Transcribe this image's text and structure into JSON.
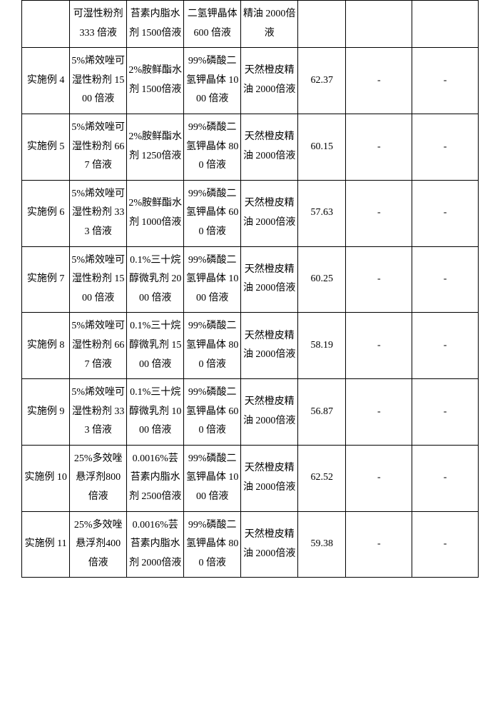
{
  "table": {
    "background_color": "#ffffff",
    "border_color": "#000000",
    "text_color": "#000000",
    "font_family": "SimSun",
    "font_size_pt": 10,
    "line_height": 1.9,
    "columns": [
      {
        "id": "label",
        "width_pct": 10.5,
        "align": "center"
      },
      {
        "id": "col1",
        "width_pct": 12.5,
        "align": "center"
      },
      {
        "id": "col2",
        "width_pct": 12.5,
        "align": "center"
      },
      {
        "id": "col3",
        "width_pct": 12.5,
        "align": "center"
      },
      {
        "id": "col4",
        "width_pct": 12.5,
        "align": "center"
      },
      {
        "id": "val",
        "width_pct": 10.5,
        "align": "center"
      },
      {
        "id": "extra1",
        "width_pct": 14.5,
        "align": "center"
      },
      {
        "id": "extra2",
        "width_pct": 14.5,
        "align": "center"
      }
    ],
    "rows": [
      {
        "label": "",
        "col1": "可湿性粉剂 333 倍液",
        "col2": "苔素内脂水剂 1500倍液",
        "col3": "二氢钾晶体 600 倍液",
        "col4": "精油 2000倍液",
        "val": "",
        "extra1": "",
        "extra2": ""
      },
      {
        "label": "实施例 4",
        "col1": "5%烯效唑可湿性粉剂 1500 倍液",
        "col2": "2%胺鲜酯水剂 1500倍液",
        "col3": "99%磷酸二氢钾晶体 1000 倍液",
        "col4": "天然橙皮精油 2000倍液",
        "val": "62.37",
        "extra1": "-",
        "extra2": "-"
      },
      {
        "label": "实施例 5",
        "col1": "5%烯效唑可湿性粉剂 667 倍液",
        "col2": "2%胺鲜酯水剂 1250倍液",
        "col3": "99%磷酸二氢钾晶体 800 倍液",
        "col4": "天然橙皮精油 2000倍液",
        "val": "60.15",
        "extra1": "-",
        "extra2": "-"
      },
      {
        "label": "实施例 6",
        "col1": "5%烯效唑可湿性粉剂 333 倍液",
        "col2": "2%胺鲜酯水剂 1000倍液",
        "col3": "99%磷酸二氢钾晶体 600 倍液",
        "col4": "天然橙皮精油 2000倍液",
        "val": "57.63",
        "extra1": "-",
        "extra2": "-"
      },
      {
        "label": "实施例 7",
        "col1": "5%烯效唑可湿性粉剂 1500 倍液",
        "col2": "0.1%三十烷醇微乳剂 2000 倍液",
        "col3": "99%磷酸二氢钾晶体 1000 倍液",
        "col4": "天然橙皮精油 2000倍液",
        "val": "60.25",
        "extra1": "-",
        "extra2": "-"
      },
      {
        "label": "实施例 8",
        "col1": "5%烯效唑可湿性粉剂 667 倍液",
        "col2": "0.1%三十烷醇微乳剂 1500 倍液",
        "col3": "99%磷酸二氢钾晶体 800 倍液",
        "col4": "天然橙皮精油 2000倍液",
        "val": "58.19",
        "extra1": "-",
        "extra2": "-"
      },
      {
        "label": "实施例 9",
        "col1": "5%烯效唑可湿性粉剂 333 倍液",
        "col2": "0.1%三十烷醇微乳剂 1000 倍液",
        "col3": "99%磷酸二氢钾晶体 600 倍液",
        "col4": "天然橙皮精油 2000倍液",
        "val": "56.87",
        "extra1": "-",
        "extra2": "-"
      },
      {
        "label": "实施例 10",
        "col1": "25%多效唑悬浮剂800 倍液",
        "col2": "0.0016%芸苔素内脂水剂 2500倍液",
        "col3": "99%磷酸二氢钾晶体 1000 倍液",
        "col4": "天然橙皮精油 2000倍液",
        "val": "62.52",
        "extra1": "-",
        "extra2": "-"
      },
      {
        "label": "实施例 11",
        "col1": "25%多效唑悬浮剂400 倍液",
        "col2": "0.0016%芸苔素内脂水剂 2000倍液",
        "col3": "99%磷酸二氢钾晶体 800 倍液",
        "col4": "天然橙皮精油 2000倍液",
        "val": "59.38",
        "extra1": "-",
        "extra2": "-"
      }
    ]
  }
}
